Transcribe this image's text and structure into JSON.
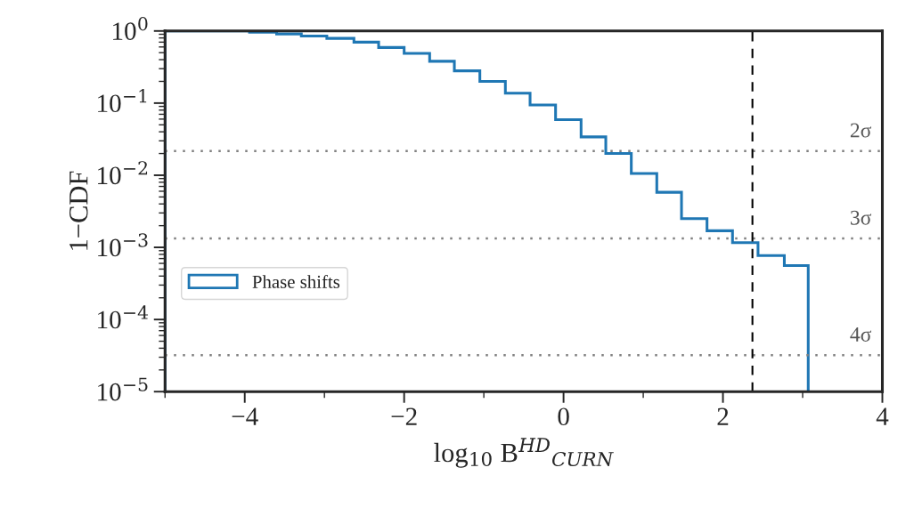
{
  "chart_data": {
    "type": "histogram",
    "xlabel": "log$_{10}$ B$^{HD}$$_{CURN}$",
    "ylabel": "1−CDF",
    "bins": [
      -5,
      -3.94,
      -3.6,
      -3.29,
      -2.97,
      -2.63,
      -2.32,
      -2.0,
      -1.68,
      -1.37,
      -1.05,
      -0.73,
      -0.42,
      -0.1,
      0.22,
      0.53,
      0.85,
      1.17,
      1.48,
      1.8,
      2.12,
      2.44,
      2.77,
      3.07
    ],
    "series": [
      {
        "name": "Phase shifts",
        "color": "#1f77b4",
        "values": [
          1.0,
          0.96,
          0.91,
          0.85,
          0.79,
          0.7,
          0.59,
          0.49,
          0.38,
          0.28,
          0.2,
          0.137,
          0.094,
          0.059,
          0.034,
          0.02,
          0.0106,
          0.0058,
          0.0025,
          0.0017,
          0.00116,
          0.00077,
          0.00056
        ]
      }
    ],
    "log": "y",
    "xlim": [
      -5,
      4
    ],
    "ylim": [
      1e-05,
      1
    ],
    "xticks": [
      {
        "value": -4,
        "label": "−4"
      },
      {
        "value": -2,
        "label": "−2"
      },
      0,
      2,
      4
    ],
    "yticks": [
      {
        "value": 1e-05,
        "label": "10$^{−5}$"
      },
      {
        "value": 0.0001,
        "label": "10$^{−4}$"
      },
      {
        "value": 0.001,
        "label": "10$^{−3}$"
      },
      {
        "value": 0.01,
        "label": "10$^{−2}$"
      },
      {
        "value": 0.1,
        "label": "10$^{−1}$"
      },
      {
        "value": 1,
        "label": "10$^{0}$"
      }
    ],
    "ref_lines": [
      {
        "axis": "y",
        "value": 0.0216,
        "label": "2σ",
        "color": "#808080",
        "line_style": "dotted"
      },
      {
        "axis": "y",
        "value": 0.00133,
        "label": "3σ",
        "color": "#808080",
        "line_style": "dotted"
      },
      {
        "axis": "y",
        "value": 3.2e-05,
        "label": "4σ",
        "color": "#808080",
        "line_style": "dotted"
      },
      {
        "axis": "x",
        "value": 2.37,
        "color": "#000000",
        "line_style": "dashed"
      }
    ],
    "grid": false,
    "legend": "left"
  }
}
